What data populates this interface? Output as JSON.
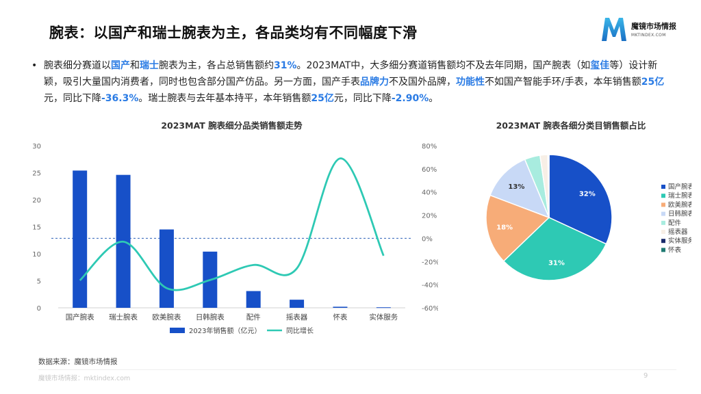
{
  "page": {
    "title": "腕表：以国产和瑞士腕表为主，各品类均有不同幅度下滑",
    "logo_name": "魔镜市场情报",
    "logo_url": "MKTINDEX.COM",
    "source": "数据来源：魔镜市场情报",
    "footer": "魔镜市场情报：mktindex.com",
    "page_number": "9",
    "brand_color": "#2a7be4"
  },
  "paragraph": {
    "segments": [
      {
        "text": "腕表细分赛道以",
        "hl": false
      },
      {
        "text": "国产",
        "hl": true
      },
      {
        "text": "和",
        "hl": false
      },
      {
        "text": "瑞士",
        "hl": true
      },
      {
        "text": "腕表为主，各占总销售额约",
        "hl": false
      },
      {
        "text": "31%",
        "hl": true
      },
      {
        "text": "。2023MAT中，大多细分赛道销售额均不及去年同期，国产腕表（如",
        "hl": false
      },
      {
        "text": "玺佳",
        "hl": true
      },
      {
        "text": "等）设计新颖，吸引大量国内消费者，同时也包含部分国产仿品。另一方面，国产手表",
        "hl": false
      },
      {
        "text": "品牌力",
        "hl": true
      },
      {
        "text": "不及国外品牌，",
        "hl": false
      },
      {
        "text": "功能性",
        "hl": true
      },
      {
        "text": "不如国产智能手环/手表，本年销售额",
        "hl": false
      },
      {
        "text": "25亿",
        "hl": true
      },
      {
        "text": "元，同比下降",
        "hl": false
      },
      {
        "text": "-36.3%",
        "hl": true
      },
      {
        "text": "。瑞士腕表与去年基本持平，本年销售额",
        "hl": false
      },
      {
        "text": "25亿",
        "hl": true
      },
      {
        "text": "元，同比下降",
        "hl": false
      },
      {
        "text": "-2.90%",
        "hl": true
      },
      {
        "text": "。",
        "hl": false
      }
    ]
  },
  "chart_data": [
    {
      "type": "bar",
      "title": "2023MAT 腕表细分品类销售额走势",
      "categories": [
        "国产腕表",
        "瑞士腕表",
        "欧美腕表",
        "日韩腕表",
        "配件",
        "摇表器",
        "怀表",
        "实体服务"
      ],
      "series": [
        {
          "name": "2023年销售额（亿元）",
          "type": "bar",
          "axis": "left",
          "color": "#1750c8",
          "values": [
            25.4,
            24.6,
            14.5,
            10.4,
            3.1,
            1.5,
            0.2,
            0.1
          ]
        },
        {
          "name": "同比增长",
          "type": "line",
          "axis": "right",
          "color": "#2ec9b4",
          "values": [
            -36.3,
            -2.9,
            -43,
            -36,
            -23,
            -26,
            69,
            -15
          ]
        }
      ],
      "y_left": {
        "min": 0,
        "max": 30,
        "ticks": [
          0,
          5,
          10,
          15,
          20,
          25,
          30
        ]
      },
      "y_right": {
        "min": -60,
        "max": 80,
        "ticks": [
          "-60%",
          "-40%",
          "-20%",
          "0%",
          "20%",
          "40%",
          "60%",
          "80%"
        ]
      },
      "reference_line_right": 0,
      "legend_position": "bottom",
      "grid": false
    },
    {
      "type": "pie",
      "title": "2023MAT 腕表各细分类目销售额占比",
      "slices": [
        {
          "name": "国产腕表",
          "value": 32,
          "label": "32%",
          "color": "#1750c8"
        },
        {
          "name": "瑞士腕表",
          "value": 31,
          "label": "31%",
          "color": "#2ec9b4"
        },
        {
          "name": "欧美腕表",
          "value": 18,
          "label": "18%",
          "color": "#f7ac78"
        },
        {
          "name": "日韩腕表",
          "value": 13,
          "label": "13%",
          "color": "#c8d9f6"
        },
        {
          "name": "配件",
          "value": 4,
          "label": "",
          "color": "#a8ecdf"
        },
        {
          "name": "摇表器",
          "value": 2,
          "label": "",
          "color": "#f7efe6"
        },
        {
          "name": "实体服务",
          "value": 0.15,
          "label": "",
          "color": "#1a2b6b"
        },
        {
          "name": "怀表",
          "value": 0.15,
          "label": "",
          "color": "#1f7a72"
        }
      ],
      "legend_position": "right"
    }
  ]
}
